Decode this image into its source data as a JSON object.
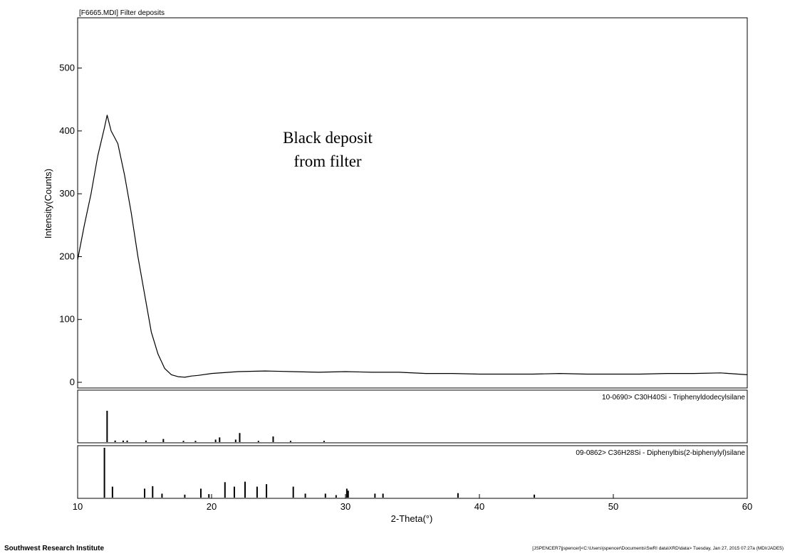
{
  "chart_data": {
    "type": "line",
    "title": "[F6665.MDI] Filter deposits",
    "annotation": [
      "Black deposit",
      "from filter"
    ],
    "xlabel": "2-Theta(°)",
    "ylabel": "Intensity(Counts)",
    "xlim": [
      10,
      60
    ],
    "ylim": [
      0,
      580
    ],
    "x_ticks": [
      "10",
      "20",
      "30",
      "40",
      "50",
      "60"
    ],
    "y_ticks": [
      "0",
      "100",
      "200",
      "300",
      "400",
      "500"
    ],
    "grid": false,
    "series": [
      {
        "x": [
          10,
          10.5,
          11,
          11.5,
          12,
          12.2,
          12.5,
          13,
          13.5,
          14,
          14.5,
          15,
          15.5,
          16,
          16.5,
          17,
          17.5,
          18,
          18.5,
          19,
          20,
          22,
          24,
          26,
          28,
          30,
          32,
          34,
          36,
          38,
          40,
          42,
          44,
          46,
          48,
          50,
          52,
          54,
          56,
          58,
          60
        ],
        "values": [
          195,
          250,
          300,
          360,
          405,
          425,
          400,
          380,
          330,
          270,
          200,
          140,
          80,
          45,
          22,
          12,
          9,
          8,
          10,
          11,
          14,
          17,
          18,
          17,
          16,
          17,
          16,
          16,
          14,
          14,
          13,
          13,
          13,
          14,
          13,
          13,
          13,
          14,
          14,
          15,
          12
        ]
      }
    ],
    "reference_patterns": [
      {
        "label": "10-0690> C30H40Si - Triphenyldodecylsilane",
        "positions": [
          12.2,
          12.8,
          13.4,
          13.7,
          15.1,
          16.4,
          17.9,
          18.8,
          20.3,
          20.6,
          21.8,
          22.1,
          23.5,
          24.6,
          25.9,
          28.4
        ],
        "intensities": [
          100,
          5,
          5,
          5,
          5,
          10,
          4,
          4,
          8,
          15,
          8,
          29,
          4,
          18,
          4,
          4
        ]
      },
      {
        "label": "09-0862> C36H28Si - Diphenylbis(2-biphenylyl)silane",
        "positions": [
          12.0,
          12.6,
          15.0,
          15.6,
          16.3,
          18.0,
          19.2,
          19.8,
          21.0,
          21.7,
          22.5,
          23.4,
          24.1,
          26.1,
          27.0,
          28.5,
          29.3,
          30.1,
          30.2,
          32.2,
          32.8,
          38.4,
          44.1
        ],
        "intensities": [
          100,
          22,
          18,
          23,
          8,
          6,
          18,
          7,
          31,
          22,
          32,
          22,
          27,
          22,
          8,
          8,
          5,
          18,
          14,
          8,
          8,
          9,
          6
        ]
      }
    ]
  },
  "footer": {
    "institution": "Southwest Research Institute",
    "path_info": "[JSPENCER7|jspencer]<C:\\Users\\jspencer\\Documents\\SwRI data\\XRD\\data> Tuesday, Jan 27, 2015 07:27a (MDI/JADE5)"
  }
}
